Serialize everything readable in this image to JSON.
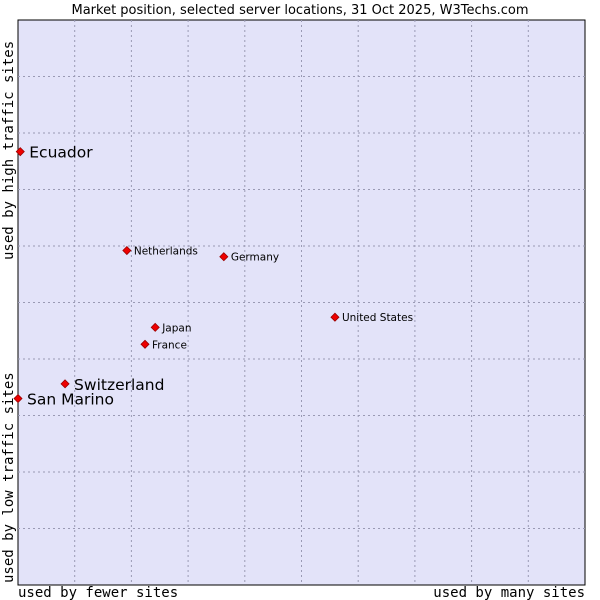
{
  "chart_data": {
    "type": "scatter",
    "title": "Market position, selected server locations, 31 Oct 2025, W3Techs.com",
    "xlabel_left": "used by fewer sites",
    "xlabel_right": "used by many sites",
    "ylabel_bottom": "used by low traffic sites",
    "ylabel_top": "used by high traffic sites",
    "xlim": [
      0,
      100
    ],
    "ylim": [
      0,
      100
    ],
    "grid": true,
    "points": [
      {
        "name": "Ecuador",
        "x": 0.4,
        "y": 76.7,
        "label_size": "large"
      },
      {
        "name": "Netherlands",
        "x": 19.2,
        "y": 59.2,
        "label_size": "small"
      },
      {
        "name": "Germany",
        "x": 36.3,
        "y": 58.1,
        "label_size": "small"
      },
      {
        "name": "United States",
        "x": 55.9,
        "y": 47.4,
        "label_size": "small"
      },
      {
        "name": "Japan",
        "x": 24.2,
        "y": 45.6,
        "label_size": "small"
      },
      {
        "name": "France",
        "x": 22.4,
        "y": 42.6,
        "label_size": "small"
      },
      {
        "name": "Switzerland",
        "x": 8.3,
        "y": 35.6,
        "label_size": "large"
      },
      {
        "name": "San Marino",
        "x": 0.0,
        "y": 33.0,
        "label_size": "large"
      }
    ]
  }
}
